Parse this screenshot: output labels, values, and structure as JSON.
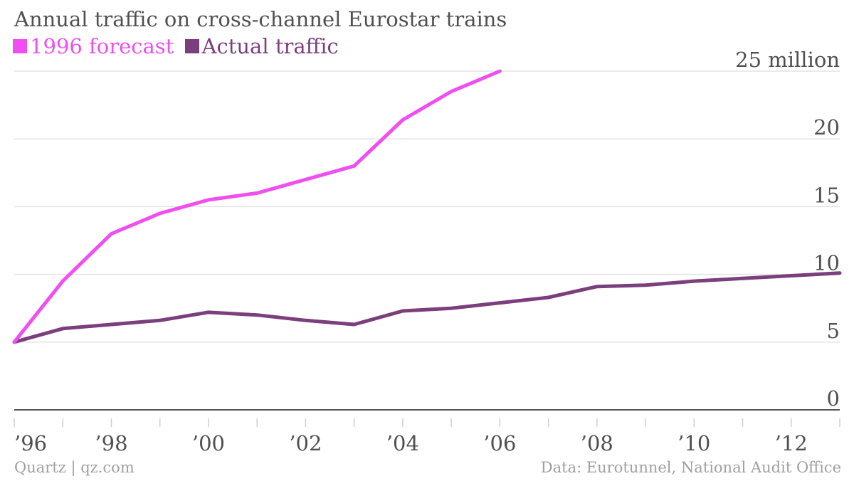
{
  "title": "Annual traffic on cross-channel Eurostar trains",
  "legend": [
    {
      "label": "1996 forecast",
      "color": "#f04ef0"
    },
    {
      "label": "Actual traffic",
      "color": "#7a3f7c"
    }
  ],
  "footer": {
    "credit": "Quartz | qz.com",
    "source": "Data: Eurotunnel, National Audit Office"
  },
  "chart_data": {
    "type": "line",
    "title": "Annual traffic on cross-channel Eurostar trains",
    "xlabel": "",
    "ylabel": "",
    "xlim": [
      1996,
      2013
    ],
    "ylim": [
      0,
      25
    ],
    "grid": true,
    "legend_position": "top-left",
    "y_ticks": [
      {
        "value": 25,
        "label": "25 million"
      },
      {
        "value": 20,
        "label": "20"
      },
      {
        "value": 15,
        "label": "15"
      },
      {
        "value": 10,
        "label": "10"
      },
      {
        "value": 5,
        "label": "5"
      },
      {
        "value": 0,
        "label": "0"
      }
    ],
    "x_ticks": [
      {
        "value": 1996,
        "label": "’96"
      },
      {
        "value": 1998,
        "label": "’98"
      },
      {
        "value": 2000,
        "label": "’00"
      },
      {
        "value": 2002,
        "label": "’02"
      },
      {
        "value": 2004,
        "label": "’04"
      },
      {
        "value": 2006,
        "label": "’06"
      },
      {
        "value": 2008,
        "label": "’08"
      },
      {
        "value": 2010,
        "label": "’10"
      },
      {
        "value": 2012,
        "label": "’12"
      }
    ],
    "series": [
      {
        "name": "1996 forecast",
        "color": "#f04ef0",
        "x": [
          1996,
          1997,
          1998,
          1999,
          2000,
          2001,
          2002,
          2003,
          2004,
          2005,
          2006
        ],
        "values": [
          5.0,
          9.5,
          13.0,
          14.5,
          15.5,
          16.0,
          17.0,
          18.0,
          21.4,
          23.5,
          25.0
        ]
      },
      {
        "name": "Actual traffic",
        "color": "#7a3f7c",
        "x": [
          1996,
          1997,
          1998,
          1999,
          2000,
          2001,
          2002,
          2003,
          2004,
          2005,
          2006,
          2007,
          2008,
          2009,
          2010,
          2011,
          2012,
          2013
        ],
        "values": [
          5.0,
          6.0,
          6.3,
          6.6,
          7.2,
          7.0,
          6.6,
          6.3,
          7.3,
          7.5,
          7.9,
          8.3,
          9.1,
          9.2,
          9.5,
          9.7,
          9.9,
          10.1
        ]
      }
    ]
  }
}
